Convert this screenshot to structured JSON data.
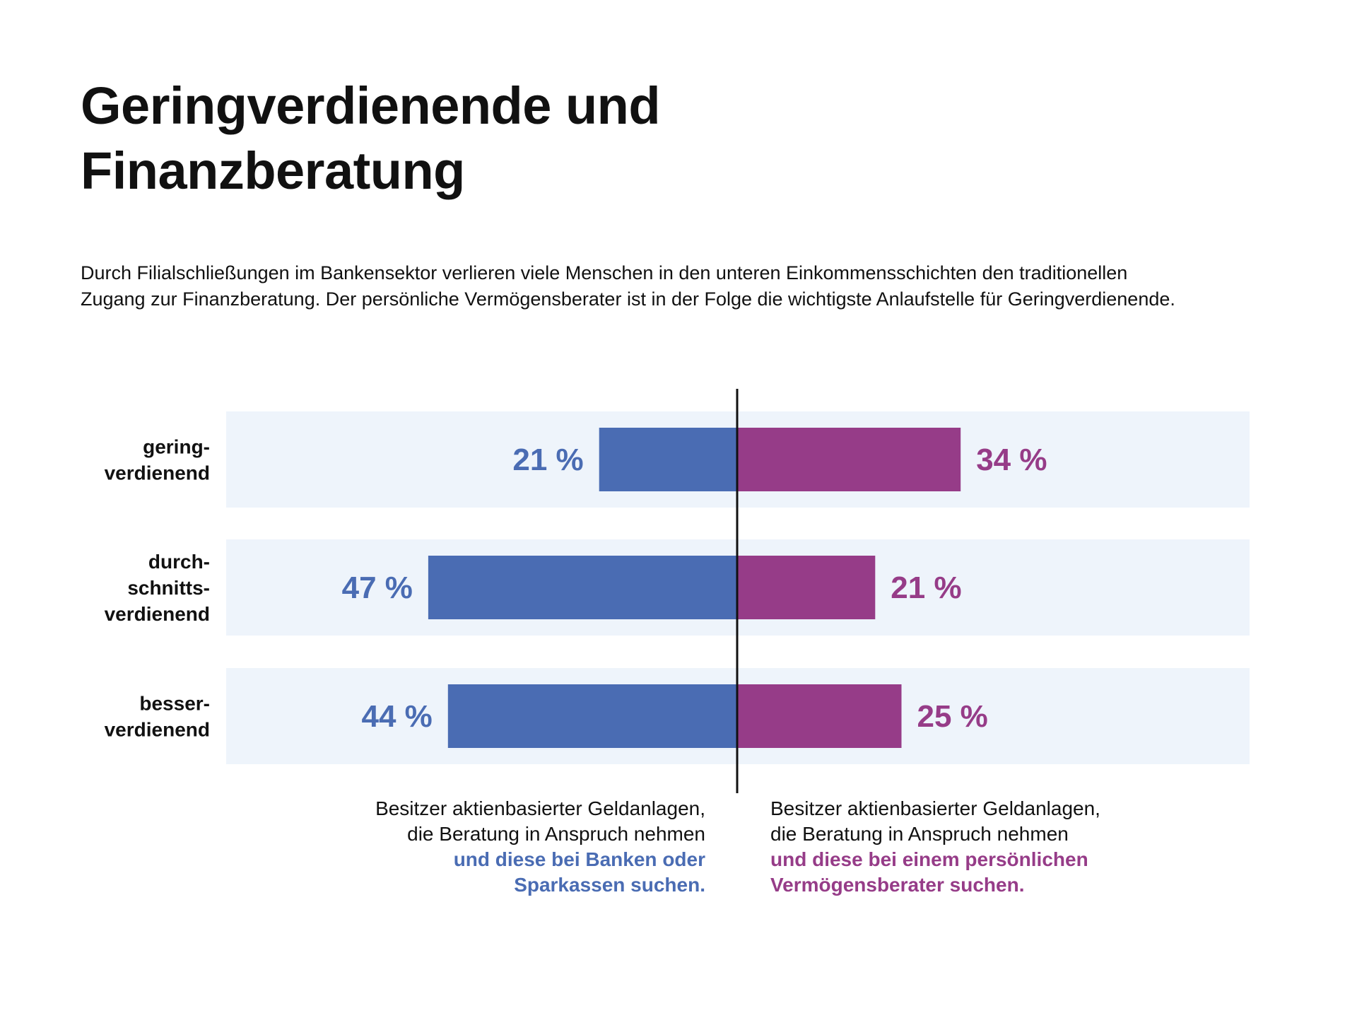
{
  "header": {
    "title_lines": [
      "Geringverdienende und",
      "Finanzberatung"
    ],
    "subtitle_lines": [
      "Durch Filialschließungen im Bankensektor verlieren viele Menschen in den unteren Einkommensschichten den traditionellen",
      "Zugang zur Finanzberatung. Der persönliche Vermögensberater ist in der Folge die wichtigste Anlaufstelle für Geringverdienende."
    ]
  },
  "chart_data": {
    "type": "bar",
    "orientation": "horizontal-diverging",
    "value_unit": "%",
    "categories": [
      [
        "gering-",
        "verdienend"
      ],
      [
        "durch-",
        "schnitts-",
        "verdienend"
      ],
      [
        "besser-",
        "verdienend"
      ]
    ],
    "series": [
      {
        "values": [
          21,
          47,
          44
        ],
        "labels": [
          "21 %",
          "47 %",
          "44 %"
        ],
        "color": "#4a6cb3",
        "direction": "left"
      },
      {
        "values": [
          34,
          21,
          25
        ],
        "labels": [
          "34 %",
          "21 %",
          "25 %"
        ],
        "color": "#963c88",
        "direction": "right"
      }
    ],
    "row_background": "#eef4fb",
    "grid": false
  },
  "legend": {
    "left": {
      "normal_lines": [
        "Besitzer aktienbasierter Geldanlagen,",
        "die Beratung in Anspruch nehmen"
      ],
      "emphasis_lines": [
        "und diese bei Banken oder",
        "Sparkassen suchen."
      ],
      "color": "#4a6cb3"
    },
    "right": {
      "normal_lines": [
        "Besitzer aktienbasierter Geldanlagen,",
        "die Beratung in Anspruch nehmen"
      ],
      "emphasis_lines": [
        "und diese bei einem persönlichen",
        "Vermögensberater suchen."
      ],
      "color": "#963c88"
    }
  }
}
